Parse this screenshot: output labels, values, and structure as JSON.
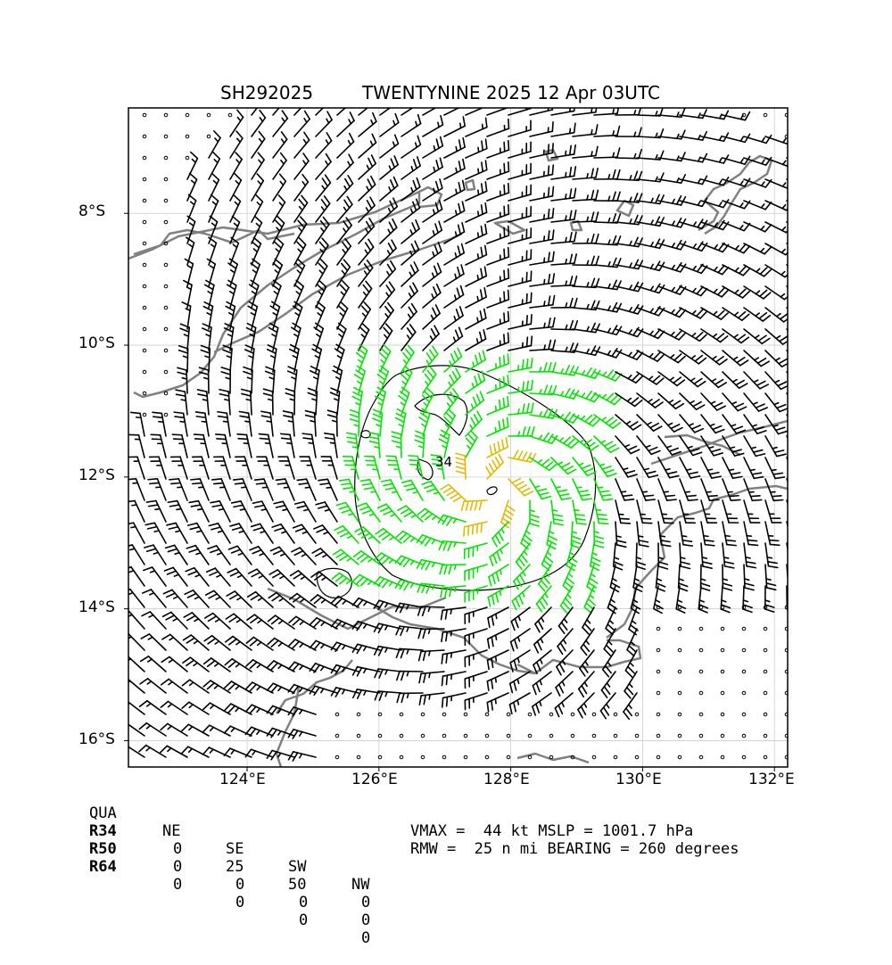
{
  "title": {
    "storm_id": "SH292025",
    "storm_desc": "TWENTYNINE 2025 12 Apr 03UTC"
  },
  "map": {
    "lon_range": [
      122.2,
      132.2
    ],
    "lat_range": [
      -16.4,
      -6.4
    ],
    "lat_ticks": [
      "8°S",
      "10°S",
      "12°S",
      "14°S",
      "16°S"
    ],
    "lon_ticks": [
      "124°E",
      "126°E",
      "128°E",
      "130°E",
      "132°E"
    ],
    "contour_label": "34",
    "colors": {
      "barb": "#000000",
      "barb_r34": "#00e600",
      "barb_r50": "#e6b800",
      "coast": "#808080",
      "grid": "#cccccc"
    },
    "storm_center": {
      "lon": 127.7,
      "lat": -12.15
    }
  },
  "stats": {
    "header": [
      "QUA",
      "NE",
      "SE",
      "SW",
      "NW"
    ],
    "rows": [
      {
        "label": "R34",
        "values": [
          "0",
          "25",
          "50",
          "0"
        ]
      },
      {
        "label": "R50",
        "values": [
          "0",
          "0",
          "0",
          "0"
        ]
      },
      {
        "label": "R64",
        "values": [
          "0",
          "0",
          "0",
          "0"
        ]
      }
    ],
    "vmax_line": "VMAX =  44 kt MSLP = 1001.7 hPa",
    "rmw_line": "RMW =  25 n mi BEARING = 260 degrees"
  }
}
